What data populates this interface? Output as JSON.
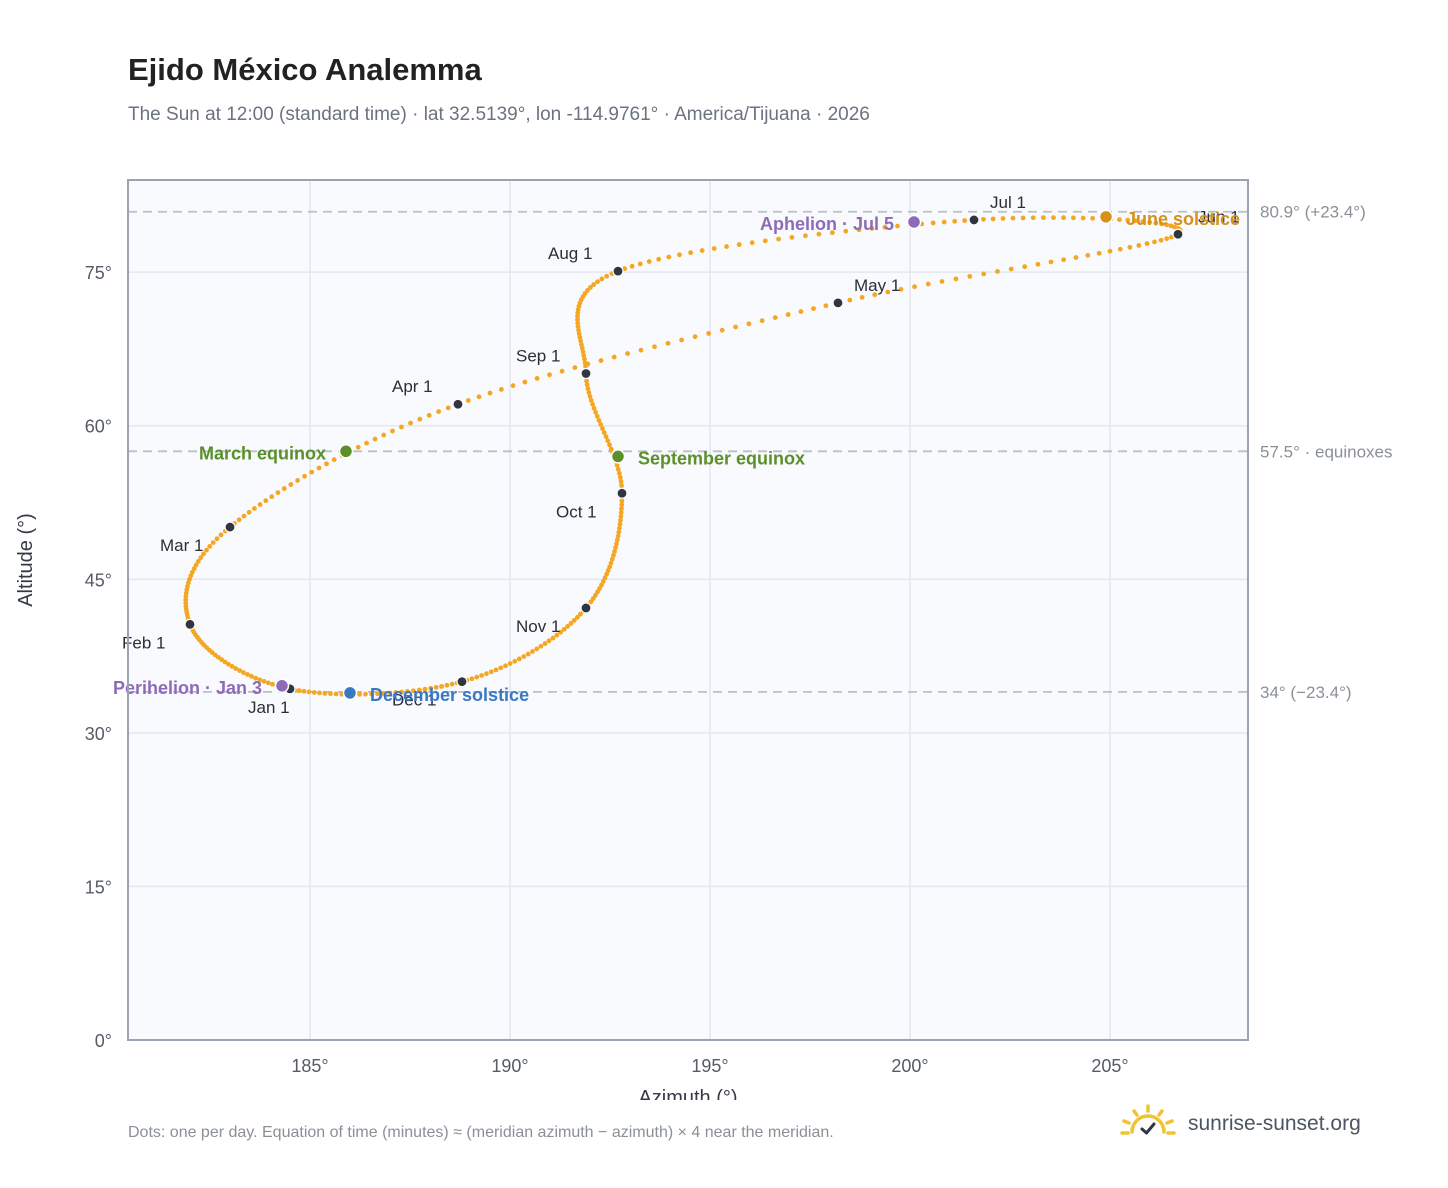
{
  "header": {
    "title": "Ejido México Analemma",
    "subtitle": "The Sun at 12:00 (standard time) · lat 32.5139°, lon -114.9761° · America/Tijuana · 2026"
  },
  "footer": {
    "note": "Dots: one per day. Equation of time (minutes) ≈ (meridian azimuth − azimuth) × 4 near the meridian.",
    "brand": "sunrise-sunset.org",
    "brand_icon": "sun-logo-icon"
  },
  "colors": {
    "path": "#f5a623",
    "month_marker": "#2f3542",
    "equinox": "#5a8f29",
    "june_solstice": "#d4921a",
    "december_solstice": "#3a78c2",
    "apsis": "#8e6bb8",
    "reference_line": "#b8c0c8",
    "plot_bg": "#f8fafd",
    "grid": "#e3e8ef",
    "frame": "#9aa3af"
  },
  "chart_data": {
    "type": "scatter",
    "xlabel": "Azimuth (°)",
    "ylabel": "Altitude (°)",
    "xlim": [
      180.45,
      208.45
    ],
    "ylim": [
      0,
      84
    ],
    "xticks": [
      185,
      190,
      195,
      200,
      205
    ],
    "yticks": [
      0,
      15,
      30,
      45,
      60,
      75
    ],
    "tick_suffix": "°",
    "grid": true,
    "reference_lines": [
      {
        "altitude": 80.9,
        "label": "80.9° (+23.4°)"
      },
      {
        "altitude": 57.5,
        "label": "57.5° · equinoxes"
      },
      {
        "altitude": 34.0,
        "label": "34° (−23.4°)"
      }
    ],
    "month_markers": [
      {
        "label": "Jan 1",
        "azimuth": 184.5,
        "altitude": 34.3
      },
      {
        "label": "Feb 1",
        "azimuth": 182.0,
        "altitude": 40.6
      },
      {
        "label": "Mar 1",
        "azimuth": 183.0,
        "altitude": 50.1
      },
      {
        "label": "Apr 1",
        "azimuth": 188.7,
        "altitude": 62.1
      },
      {
        "label": "May 1",
        "azimuth": 198.2,
        "altitude": 72.0
      },
      {
        "label": "Jun 1",
        "azimuth": 206.7,
        "altitude": 78.7
      },
      {
        "label": "Jul 1",
        "azimuth": 201.6,
        "altitude": 80.1
      },
      {
        "label": "Aug 1",
        "azimuth": 192.7,
        "altitude": 75.1
      },
      {
        "label": "Sep 1",
        "azimuth": 191.9,
        "altitude": 65.1
      },
      {
        "label": "Oct 1",
        "azimuth": 192.8,
        "altitude": 53.4
      },
      {
        "label": "Nov 1",
        "azimuth": 191.9,
        "altitude": 42.2
      },
      {
        "label": "Dec 1",
        "azimuth": 188.8,
        "altitude": 35.0
      }
    ],
    "events": [
      {
        "label": "March equinox",
        "azimuth": 185.9,
        "altitude": 57.5,
        "kind": "equinox"
      },
      {
        "label": "June solstice",
        "azimuth": 204.9,
        "altitude": 80.4,
        "kind": "june_solstice"
      },
      {
        "label": "September equinox",
        "azimuth": 192.7,
        "altitude": 57.0,
        "kind": "equinox"
      },
      {
        "label": "December solstice",
        "azimuth": 186.0,
        "altitude": 33.9,
        "kind": "december_solstice"
      },
      {
        "label": "Perihelion · Jan 3",
        "azimuth": 184.3,
        "altitude": 34.6,
        "kind": "apsis"
      },
      {
        "label": "Aphelion · Jul 5",
        "azimuth": 200.1,
        "altitude": 79.9,
        "kind": "apsis"
      }
    ]
  }
}
